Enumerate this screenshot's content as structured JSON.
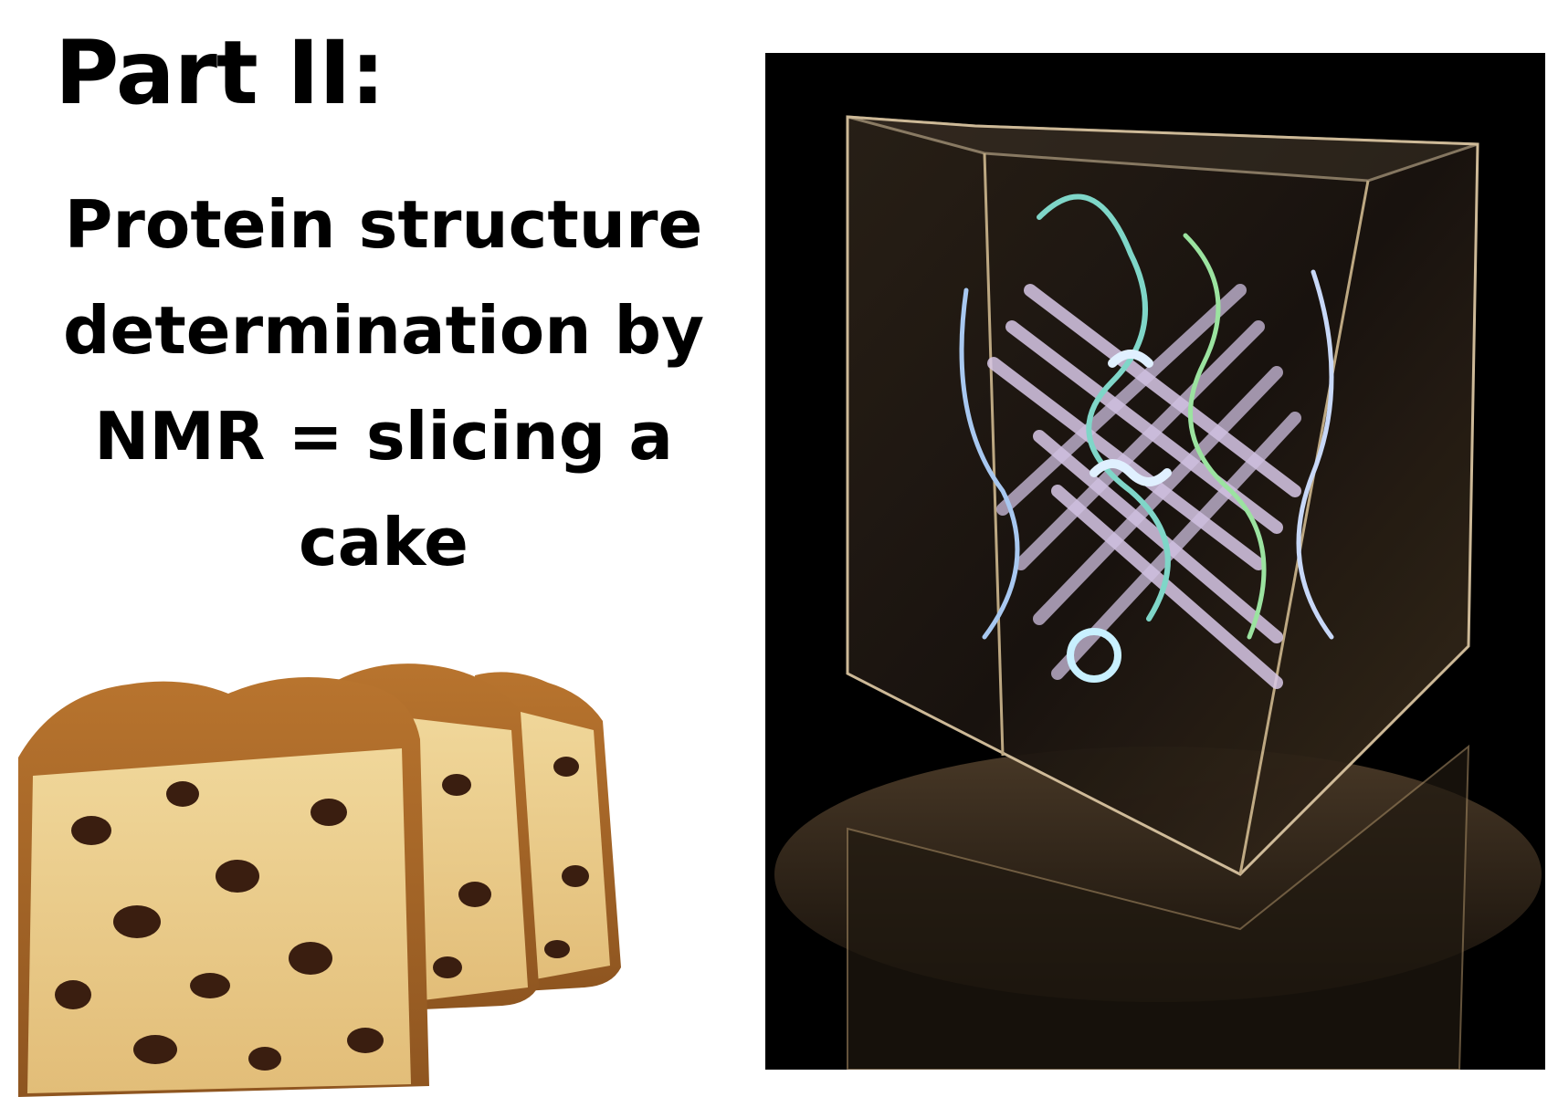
{
  "slide": {
    "part_title": "Part II:",
    "subtitle_lines": [
      "Protein structure",
      "determination by",
      "NMR = slicing a",
      "cake"
    ]
  },
  "images": {
    "cake": "sliced-raisin-cake-photo",
    "crystal": "protein-structure-glass-crystal-photo"
  }
}
